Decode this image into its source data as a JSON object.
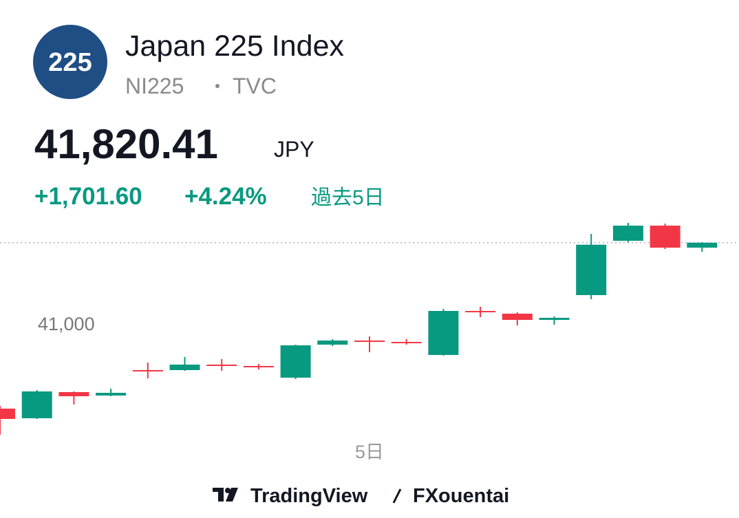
{
  "header": {
    "logo": "225",
    "title": "Japan 225 Index",
    "symbol": "NI225",
    "exchange": "TVC",
    "price": "41,820.41",
    "currency": "JPY",
    "change": "+1,701.60",
    "change_percent": "+4.24%",
    "period": "過去5日"
  },
  "chart_data": {
    "type": "candlestick",
    "categories": [
      null,
      null,
      null,
      null,
      null,
      null,
      null,
      null,
      null,
      null,
      "5日",
      null,
      null,
      null,
      null,
      null,
      null,
      null,
      null,
      null
    ],
    "open": [
      40132,
      40034,
      40300,
      40265,
      40524,
      40524,
      40580,
      40566,
      40447,
      40783,
      40825,
      40811,
      40678,
      41126,
      41098,
      41035,
      41287,
      41840,
      41994,
      41770
    ],
    "high": [
      40160,
      40321,
      40307,
      40335,
      40601,
      40657,
      40636,
      40587,
      40783,
      40839,
      40867,
      40839,
      41147,
      41168,
      41112,
      41070,
      41910,
      42022,
      42015,
      41826
    ],
    "low": [
      39866,
      40027,
      40174,
      40258,
      40440,
      40517,
      40517,
      40531,
      40433,
      40769,
      40706,
      40783,
      40671,
      41063,
      40979,
      40986,
      41245,
      41826,
      41756,
      41728
    ],
    "close": [
      40027,
      40307,
      40258,
      40293,
      40510,
      40580,
      40566,
      40552,
      40776,
      40825,
      40811,
      40797,
      41126,
      41112,
      41035,
      41056,
      41800,
      41994,
      41770,
      41820.41
    ],
    "up_color": "#089981",
    "down_color": "#f23645",
    "ylim": [
      39530,
      42190
    ],
    "yticks": [
      {
        "value": 41000,
        "label": "41,000"
      }
    ],
    "grid": false
  },
  "footer": {
    "brand": "TradingView",
    "author": "FXouentai"
  }
}
